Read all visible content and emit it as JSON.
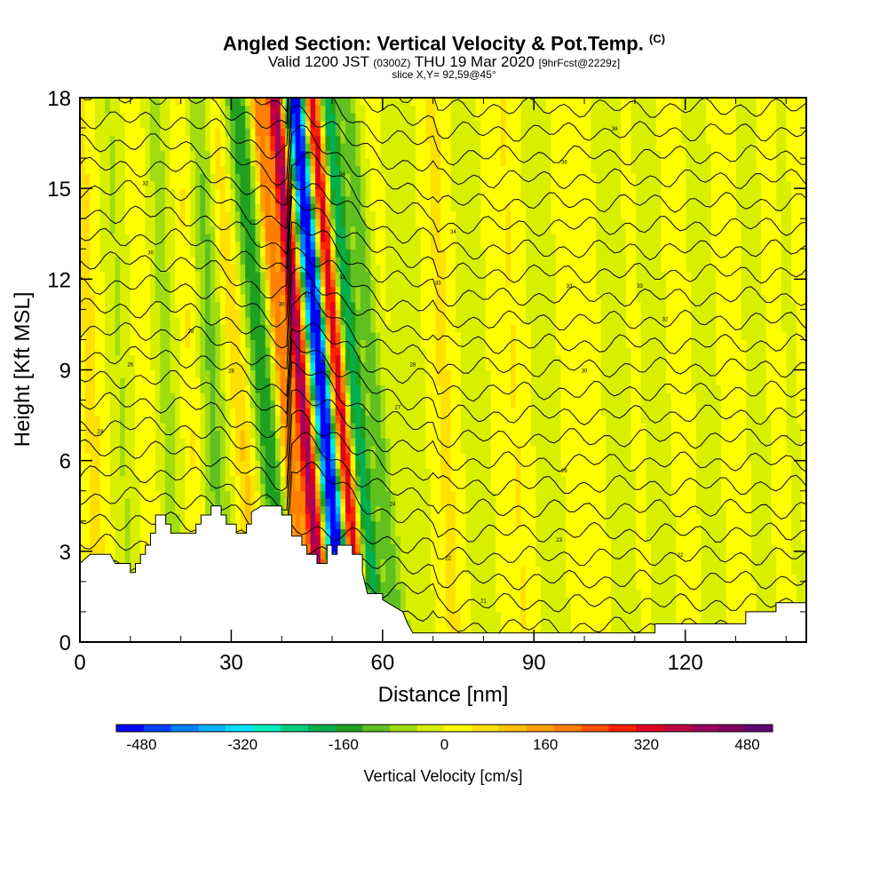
{
  "header": {
    "title": "Angled Section: Vertical Velocity & Pot.Temp.",
    "title_mark": "(C)",
    "subtitle_a": "Valid 1200 JST",
    "subtitle_b": "(0300Z)",
    "subtitle_c": "THU 19 Mar 2020",
    "subtitle_d": "[9hrFcst@2229z]",
    "slice": "slice X,Y= 92,59@45°"
  },
  "chart_data": {
    "type": "heatmap",
    "xlabel": "Distance [nm]",
    "ylabel": "Height [Kft MSL]",
    "xlim": [
      0,
      144
    ],
    "ylim": [
      0,
      18
    ],
    "x_ticks": [
      0,
      30,
      60,
      90,
      120
    ],
    "y_ticks": [
      0,
      3,
      6,
      9,
      12,
      15,
      18
    ],
    "colorbar": {
      "label": "Vertical Velocity [cm/s]",
      "min": -520,
      "max": 520,
      "tick_labels": [
        -480,
        -320,
        -160,
        0,
        160,
        320,
        480
      ],
      "colors": [
        "#0000ff",
        "#0040ff",
        "#0080ff",
        "#00b0ff",
        "#00e0ff",
        "#00f0c0",
        "#00d080",
        "#00b050",
        "#20a020",
        "#60c020",
        "#a0dc10",
        "#d8f000",
        "#ffff00",
        "#ffe000",
        "#ffc000",
        "#ffa000",
        "#ff8000",
        "#ff5000",
        "#ff2000",
        "#e00020",
        "#c00040",
        "#a00060",
        "#800060",
        "#600070"
      ]
    },
    "velocity_bands": [
      {
        "x": 2,
        "w": 2,
        "v": 40
      },
      {
        "x": 8,
        "w": 2.5,
        "v": -60
      },
      {
        "x": 13,
        "w": 2,
        "v": 30
      },
      {
        "x": 17,
        "w": 3,
        "v": -70
      },
      {
        "x": 22,
        "w": 2,
        "v": 50
      },
      {
        "x": 26,
        "w": 3,
        "v": -110
      },
      {
        "x": 31,
        "w": 2,
        "v": 80
      },
      {
        "x": 36,
        "w": 2.5,
        "v": -180
      },
      {
        "x": 40,
        "w": 1.5,
        "v": 200
      },
      {
        "x": 43.5,
        "w": 1.6,
        "v": 400
      },
      {
        "x": 46.5,
        "w": 1.2,
        "v": -300
      },
      {
        "x": 48,
        "w": 1.3,
        "v": -480
      },
      {
        "x": 51,
        "w": 1.4,
        "v": 340
      },
      {
        "x": 54,
        "w": 1.8,
        "v": -220
      },
      {
        "x": 58,
        "w": 2,
        "v": -120
      },
      {
        "x": 65,
        "w": 3,
        "v": -50
      },
      {
        "x": 72,
        "w": 2,
        "v": 40
      },
      {
        "x": 78,
        "w": 3,
        "v": -40
      },
      {
        "x": 86,
        "w": 2,
        "v": 30
      },
      {
        "x": 92,
        "w": 3,
        "v": -40
      },
      {
        "x": 100,
        "w": 2,
        "v": 25
      },
      {
        "x": 106,
        "w": 3,
        "v": -35
      },
      {
        "x": 114,
        "w": 3,
        "v": -30
      },
      {
        "x": 124,
        "w": 3,
        "v": -30
      },
      {
        "x": 134,
        "w": 3,
        "v": -25
      },
      {
        "x": 141,
        "w": 2,
        "v": -20
      }
    ],
    "terrain": [
      [
        0,
        2.6
      ],
      [
        2,
        2.9
      ],
      [
        6,
        2.9
      ],
      [
        7,
        2.6
      ],
      [
        10,
        2.6
      ],
      [
        10,
        2.3
      ],
      [
        11,
        2.3
      ],
      [
        11,
        2.6
      ],
      [
        12,
        2.6
      ],
      [
        12,
        2.9
      ],
      [
        13,
        2.9
      ],
      [
        13,
        3.2
      ],
      [
        14,
        3.2
      ],
      [
        14,
        3.6
      ],
      [
        15,
        3.6
      ],
      [
        15,
        4.2
      ],
      [
        17,
        4.2
      ],
      [
        17,
        3.9
      ],
      [
        18,
        3.9
      ],
      [
        18,
        3.6
      ],
      [
        23,
        3.6
      ],
      [
        23,
        3.9
      ],
      [
        24,
        3.9
      ],
      [
        24,
        4.2
      ],
      [
        26,
        4.2
      ],
      [
        26,
        4.5
      ],
      [
        28,
        4.5
      ],
      [
        28,
        4.2
      ],
      [
        29,
        4.2
      ],
      [
        29,
        3.9
      ],
      [
        31,
        3.9
      ],
      [
        31,
        3.6
      ],
      [
        33,
        3.6
      ],
      [
        33,
        3.9
      ],
      [
        34,
        3.9
      ],
      [
        34,
        4.3
      ],
      [
        36,
        4.5
      ],
      [
        40,
        4.5
      ],
      [
        40,
        4.2
      ],
      [
        42,
        4.2
      ],
      [
        42,
        3.5
      ],
      [
        44,
        3.5
      ],
      [
        44,
        3.2
      ],
      [
        45,
        3.2
      ],
      [
        45,
        2.9
      ],
      [
        47,
        2.9
      ],
      [
        47,
        2.6
      ],
      [
        49,
        2.6
      ],
      [
        49,
        3.2
      ],
      [
        50,
        3.2
      ],
      [
        50,
        2.9
      ],
      [
        51,
        2.9
      ],
      [
        51,
        3.2
      ],
      [
        54,
        3.2
      ],
      [
        54,
        2.9
      ],
      [
        56,
        2.9
      ],
      [
        56,
        2.3
      ],
      [
        57,
        1.6
      ],
      [
        60,
        1.6
      ],
      [
        60,
        1.4
      ],
      [
        64,
        1.0
      ],
      [
        65,
        0.6
      ],
      [
        66,
        0.3
      ],
      [
        88,
        0.3
      ],
      [
        114,
        0.3
      ],
      [
        114,
        0.6
      ],
      [
        132,
        0.6
      ],
      [
        132,
        1.0
      ],
      [
        138,
        1.0
      ],
      [
        138,
        1.3
      ],
      [
        144,
        1.3
      ]
    ],
    "isentrope_labels": [
      {
        "x": 4,
        "y": 7.0,
        "text": "24"
      },
      {
        "x": 10,
        "y": 9.2,
        "text": "26"
      },
      {
        "x": 14,
        "y": 12.9,
        "text": "30"
      },
      {
        "x": 13,
        "y": 15.2,
        "text": "32"
      },
      {
        "x": 22,
        "y": 10.3,
        "text": "28"
      },
      {
        "x": 30,
        "y": 9.0,
        "text": "28"
      },
      {
        "x": 40,
        "y": 11.2,
        "text": "30"
      },
      {
        "x": 45,
        "y": 11.5,
        "text": "31"
      },
      {
        "x": 52,
        "y": 15.5,
        "text": "34"
      },
      {
        "x": 52,
        "y": 12.1,
        "text": "32"
      },
      {
        "x": 48,
        "y": 9.3,
        "text": "28"
      },
      {
        "x": 66,
        "y": 9.2,
        "text": "28"
      },
      {
        "x": 63,
        "y": 7.8,
        "text": "27"
      },
      {
        "x": 62,
        "y": 4.6,
        "text": "24"
      },
      {
        "x": 73,
        "y": 2.8,
        "text": "22"
      },
      {
        "x": 80,
        "y": 1.4,
        "text": "21"
      },
      {
        "x": 74,
        "y": 13.6,
        "text": "34"
      },
      {
        "x": 71,
        "y": 11.9,
        "text": "33"
      },
      {
        "x": 96,
        "y": 15.9,
        "text": "36"
      },
      {
        "x": 97,
        "y": 11.8,
        "text": "33"
      },
      {
        "x": 100,
        "y": 9.0,
        "text": "30"
      },
      {
        "x": 96,
        "y": 5.7,
        "text": "26"
      },
      {
        "x": 95,
        "y": 3.4,
        "text": "23"
      },
      {
        "x": 106,
        "y": 17.0,
        "text": "38"
      },
      {
        "x": 111,
        "y": 11.8,
        "text": "33"
      },
      {
        "x": 116,
        "y": 10.7,
        "text": "32"
      },
      {
        "x": 119,
        "y": 2.9,
        "text": "22"
      }
    ]
  }
}
